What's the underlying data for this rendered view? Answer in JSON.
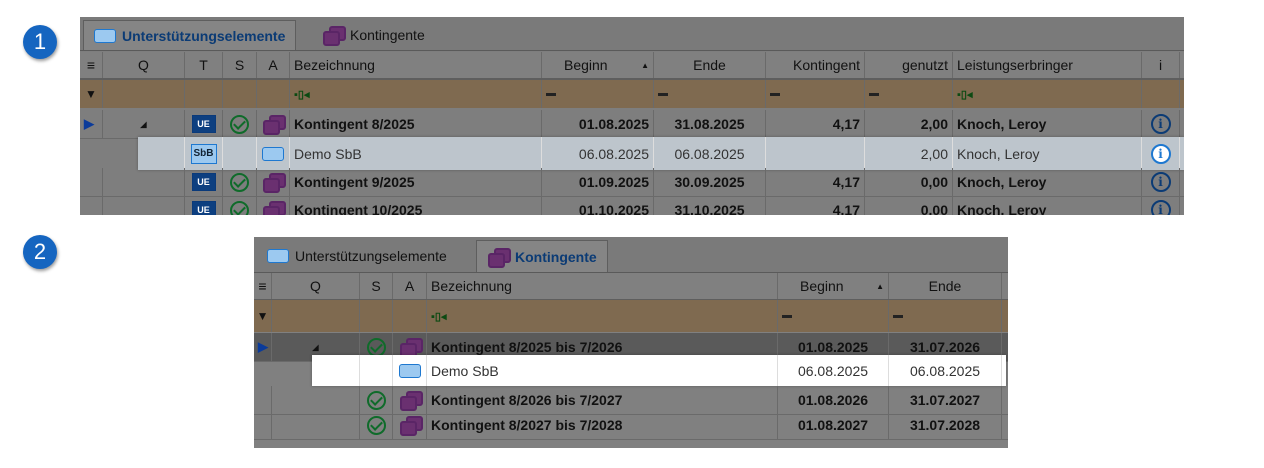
{
  "badges": [
    "1",
    "2"
  ],
  "panel1": {
    "tabs": [
      {
        "label": "Unterstützungselemente",
        "active": true,
        "icon": "support-element-icon"
      },
      {
        "label": "Kontingente",
        "active": false,
        "icon": "kontingent-icon"
      }
    ],
    "columns": [
      "",
      "Q",
      "T",
      "S",
      "A",
      "Bezeichnung",
      "Beginn",
      "Ende",
      "Kontingent",
      "genutzt",
      "Leistungserbringer",
      "i"
    ],
    "sort": {
      "column": "Beginn",
      "direction": "ascending"
    },
    "rows": [
      {
        "T": "UE",
        "S": "check",
        "A": "kontingent",
        "name": "Kontingent 8/2025",
        "beginn": "01.08.2025",
        "ende": "31.08.2025",
        "kontingent": "4,17",
        "genutzt": "2,00",
        "le": "Knoch, Leroy",
        "current": true,
        "expanded": true
      },
      {
        "T": "SbB",
        "S": "",
        "A": "support",
        "name": "Demo SbB",
        "beginn": "06.08.2025",
        "ende": "06.08.2025",
        "kontingent": "",
        "genutzt": "2,00",
        "le": "Knoch, Leroy",
        "highlight": true
      },
      {
        "T": "UE",
        "S": "check",
        "A": "kontingent",
        "name": "Kontingent 9/2025",
        "beginn": "01.09.2025",
        "ende": "30.09.2025",
        "kontingent": "4,17",
        "genutzt": "0,00",
        "le": "Knoch, Leroy"
      },
      {
        "T": "UE",
        "S": "check",
        "A": "kontingent",
        "name": "Kontingent 10/2025",
        "beginn": "01.10.2025",
        "ende": "31.10.2025",
        "kontingent": "4,17",
        "genutzt": "0,00",
        "le": "Knoch, Leroy"
      }
    ]
  },
  "panel2": {
    "tabs": [
      {
        "label": "Unterstützungselemente",
        "active": false,
        "icon": "support-element-icon"
      },
      {
        "label": "Kontingente",
        "active": true,
        "icon": "kontingent-icon"
      }
    ],
    "columns": [
      "",
      "Q",
      "S",
      "A",
      "Bezeichnung",
      "Beginn",
      "Ende"
    ],
    "sort": {
      "column": "Beginn",
      "direction": "ascending"
    },
    "rows": [
      {
        "S": "check",
        "A": "kontingent",
        "name": "Kontingent 8/2025 bis 7/2026",
        "beginn": "01.08.2025",
        "ende": "31.07.2026",
        "current": true,
        "expanded": true
      },
      {
        "S": "",
        "A": "support",
        "name": "Demo SbB",
        "beginn": "06.08.2025",
        "ende": "06.08.2025",
        "highlight": true
      },
      {
        "S": "check",
        "A": "kontingent",
        "name": "Kontingent 8/2026 bis 7/2027",
        "beginn": "01.08.2026",
        "ende": "31.07.2027"
      },
      {
        "S": "check",
        "A": "kontingent",
        "name": "Kontingent 8/2027 bis 7/2028",
        "beginn": "01.08.2027",
        "ende": "31.07.2028"
      }
    ]
  },
  "colors": {
    "accent": "#1565c0",
    "filter_row": "#7f6a50",
    "check": "#0f6b2a",
    "kontingent": "#6a3070"
  }
}
